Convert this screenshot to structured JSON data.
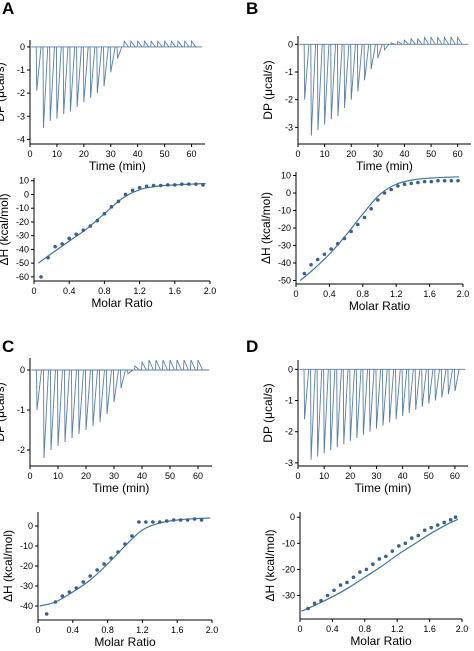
{
  "figure": {
    "panels": [
      "A",
      "B",
      "C",
      "D"
    ]
  },
  "chart_data": [
    {
      "panel": "A",
      "thermogram": {
        "type": "line",
        "xlabel": "Time (min)",
        "ylabel": "DP (μcal/s)",
        "xlim": [
          0,
          65
        ],
        "ylim": [
          -4.2,
          0.3
        ],
        "xticks": [
          0,
          10,
          20,
          30,
          40,
          50,
          60
        ],
        "yticks": [
          0,
          -1,
          -2,
          -3,
          -4
        ],
        "baseline": 0,
        "injection_times": [
          2.5,
          5,
          7.5,
          10,
          12.5,
          15,
          17.5,
          20,
          22.5,
          25,
          27.5,
          30,
          32.5,
          35,
          37.5,
          40,
          42.5,
          45,
          47.5,
          50,
          52.5,
          55,
          57.5,
          60
        ],
        "injection_peaks": [
          -1.9,
          -3.5,
          -3.2,
          -3.1,
          -2.9,
          -2.8,
          -2.6,
          -2.4,
          -2.2,
          -2.0,
          -1.7,
          -1.1,
          -0.5,
          0.25,
          0.25,
          0.25,
          0.25,
          0.25,
          0.25,
          0.25,
          0.25,
          0.25,
          0.25,
          0.25
        ]
      },
      "binding_isotherm": {
        "type": "scatter",
        "xlabel": "Molar Ratio",
        "ylabel": "ΔH (kcal/mol)",
        "xlim": [
          0,
          2.0
        ],
        "ylim": [
          -63,
          12
        ],
        "xticks": [
          0,
          0.4,
          0.8,
          1.2,
          1.6,
          2.0
        ],
        "xtick_labels": [
          "0",
          "0.4",
          "0.8",
          "1.2",
          "1.6",
          "2.0"
        ],
        "yticks": [
          10,
          0,
          -10,
          -20,
          -30,
          -40,
          -50,
          -60
        ],
        "points": {
          "x": [
            0.08,
            0.16,
            0.24,
            0.32,
            0.4,
            0.48,
            0.56,
            0.64,
            0.72,
            0.8,
            0.88,
            0.96,
            1.04,
            1.12,
            1.2,
            1.28,
            1.36,
            1.44,
            1.52,
            1.6,
            1.68,
            1.76,
            1.84,
            1.92
          ],
          "y": [
            -60,
            -46,
            -38,
            -36,
            -32,
            -29,
            -26,
            -23,
            -19,
            -14,
            -9,
            -5,
            0,
            3,
            5,
            6,
            6.5,
            6.5,
            7,
            7,
            7.5,
            7.5,
            7.5,
            7
          ]
        },
        "fit": {
          "x": [
            0.05,
            0.2,
            0.4,
            0.6,
            0.8,
            1.0,
            1.2,
            1.4,
            1.6,
            1.8,
            1.95
          ],
          "y": [
            -50,
            -43,
            -34,
            -25,
            -14,
            -3,
            3.5,
            6,
            7,
            7.6,
            8
          ]
        }
      }
    },
    {
      "panel": "B",
      "thermogram": {
        "type": "line",
        "xlabel": "Time (min)",
        "ylabel": "DP (μcal/s)",
        "xlim": [
          0,
          65
        ],
        "ylim": [
          -3.6,
          0.3
        ],
        "xticks": [
          0,
          10,
          20,
          30,
          40,
          50,
          60
        ],
        "yticks": [
          0,
          -1,
          -2,
          -3
        ],
        "baseline": 0,
        "injection_times": [
          2.5,
          5,
          7.5,
          10,
          12.5,
          15,
          17.5,
          20,
          22.5,
          25,
          27.5,
          30,
          32.5,
          35,
          37.5,
          40,
          42.5,
          45,
          47.5,
          50,
          52.5,
          55,
          57.5,
          60
        ],
        "injection_peaks": [
          -2.0,
          -3.3,
          -3.1,
          -2.9,
          -2.7,
          -2.6,
          -2.3,
          -2.0,
          -1.7,
          -1.3,
          -0.9,
          -0.5,
          -0.2,
          0.05,
          0.1,
          0.15,
          0.2,
          0.2,
          0.25,
          0.25,
          0.25,
          0.25,
          0.25,
          0.25
        ]
      },
      "binding_isotherm": {
        "type": "scatter",
        "xlabel": "Molar Ratio",
        "ylabel": "ΔH (kcal/mol)",
        "xlim": [
          0,
          2.0
        ],
        "ylim": [
          -52,
          12
        ],
        "xticks": [
          0,
          0.4,
          0.8,
          1.2,
          1.6,
          2.0
        ],
        "xtick_labels": [
          "0",
          "0.4",
          "0.8",
          "1.2",
          "1.6",
          "2.0"
        ],
        "yticks": [
          10,
          0,
          -10,
          -20,
          -30,
          -40,
          -50
        ],
        "points": {
          "x": [
            0.1,
            0.18,
            0.26,
            0.34,
            0.42,
            0.5,
            0.58,
            0.66,
            0.74,
            0.82,
            0.9,
            0.98,
            1.06,
            1.14,
            1.22,
            1.3,
            1.38,
            1.46,
            1.54,
            1.62,
            1.7,
            1.78,
            1.86,
            1.94
          ],
          "y": [
            -46,
            -41,
            -38,
            -35,
            -32,
            -29,
            -26,
            -22,
            -18,
            -14,
            -9,
            -4,
            0,
            2,
            4,
            5,
            5.5,
            6,
            6.5,
            6.5,
            7,
            7,
            7,
            7
          ]
        },
        "fit": {
          "x": [
            0.05,
            0.2,
            0.4,
            0.6,
            0.8,
            1.0,
            1.2,
            1.4,
            1.6,
            1.8,
            1.95
          ],
          "y": [
            -50,
            -44,
            -35,
            -24,
            -12,
            -1,
            5,
            7.5,
            8.5,
            9,
            9.2
          ]
        }
      }
    },
    {
      "panel": "C",
      "thermogram": {
        "type": "line",
        "xlabel": "Time (min)",
        "ylabel": "DP (μcal/s)",
        "xlim": [
          0,
          65
        ],
        "ylim": [
          -2.4,
          0.3
        ],
        "xticks": [
          0,
          10,
          20,
          30,
          40,
          50,
          60
        ],
        "yticks": [
          0,
          -1,
          -2
        ],
        "baseline": 0,
        "injection_times": [
          2.5,
          5,
          7.5,
          10,
          12.5,
          15,
          17.5,
          20,
          22.5,
          25,
          27.5,
          30,
          32.5,
          35,
          37.5,
          40,
          42.5,
          45,
          47.5,
          50,
          52.5,
          55,
          57.5,
          60
        ],
        "injection_peaks": [
          -1.0,
          -2.2,
          -2.0,
          -1.9,
          -1.8,
          -1.7,
          -1.6,
          -1.5,
          -1.4,
          -1.3,
          -1.1,
          -0.8,
          -0.45,
          -0.1,
          0.1,
          0.2,
          0.25,
          0.25,
          0.25,
          0.25,
          0.25,
          0.25,
          0.25,
          0.25
        ]
      },
      "binding_isotherm": {
        "type": "scatter",
        "xlabel": "Molar Ratio",
        "ylabel": "ΔH (kcal/mol)",
        "xlim": [
          0,
          2.0
        ],
        "ylim": [
          -47,
          7
        ],
        "xticks": [
          0,
          0.4,
          0.8,
          1.2,
          1.6,
          2.0
        ],
        "xtick_labels": [
          "0",
          "0.4",
          "0.8",
          "1.2",
          "1.6",
          "2.0"
        ],
        "yticks": [
          0,
          -10,
          -20,
          -30,
          -40
        ],
        "points": {
          "x": [
            0.1,
            0.2,
            0.28,
            0.36,
            0.44,
            0.52,
            0.6,
            0.68,
            0.76,
            0.84,
            0.92,
            1.0,
            1.08,
            1.16,
            1.24,
            1.32,
            1.4,
            1.48,
            1.56,
            1.64,
            1.72,
            1.8,
            1.88
          ],
          "y": [
            -44,
            -38,
            -35,
            -33,
            -31,
            -28,
            -25,
            -22,
            -19,
            -16,
            -13,
            -9,
            -5,
            2,
            2,
            2,
            2,
            2.5,
            3,
            3,
            3,
            3.5,
            3
          ]
        },
        "fit": {
          "x": [
            0.02,
            0.2,
            0.4,
            0.6,
            0.8,
            1.0,
            1.2,
            1.4,
            1.6,
            1.8,
            1.98
          ],
          "y": [
            -40,
            -38,
            -33,
            -27,
            -19,
            -10,
            -2,
            1.5,
            3,
            3.7,
            4
          ]
        }
      }
    },
    {
      "panel": "D",
      "thermogram": {
        "type": "line",
        "xlabel": "Time (min)",
        "ylabel": "DP (μcal/s)",
        "xlim": [
          0,
          65
        ],
        "ylim": [
          -3.1,
          0.3
        ],
        "xticks": [
          0,
          10,
          20,
          30,
          40,
          50,
          60
        ],
        "yticks": [
          0,
          -1,
          -2,
          -3
        ],
        "baseline": 0,
        "injection_times": [
          2.5,
          5,
          7.5,
          10,
          12.5,
          15,
          17.5,
          20,
          22.5,
          25,
          27.5,
          30,
          32.5,
          35,
          37.5,
          40,
          42.5,
          45,
          47.5,
          50,
          52.5,
          55,
          57.5,
          60
        ],
        "injection_peaks": [
          -1.6,
          -2.9,
          -2.8,
          -2.7,
          -2.6,
          -2.5,
          -2.4,
          -2.3,
          -2.2,
          -2.1,
          -2.0,
          -1.9,
          -1.8,
          -1.7,
          -1.6,
          -1.5,
          -1.4,
          -1.3,
          -1.2,
          -1.1,
          -1.0,
          -0.9,
          -0.8,
          -0.7
        ]
      },
      "binding_isotherm": {
        "type": "scatter",
        "xlabel": "Molar Ratio",
        "ylabel": "ΔH (kcal/mol)",
        "xlim": [
          0,
          2.0
        ],
        "ylim": [
          -39,
          2
        ],
        "xticks": [
          0,
          0.4,
          0.8,
          1.2,
          1.6,
          2.0
        ],
        "xtick_labels": [
          "0",
          "0.4",
          "0.8",
          "1.2",
          "1.6",
          "2.0"
        ],
        "yticks": [
          0,
          -10,
          -20,
          -30
        ],
        "points": {
          "x": [
            0.1,
            0.18,
            0.26,
            0.34,
            0.42,
            0.5,
            0.58,
            0.66,
            0.74,
            0.82,
            0.9,
            0.98,
            1.06,
            1.14,
            1.22,
            1.3,
            1.38,
            1.46,
            1.54,
            1.62,
            1.7,
            1.78,
            1.86,
            1.92
          ],
          "y": [
            -35,
            -33,
            -32,
            -30,
            -28,
            -26,
            -25,
            -23,
            -21,
            -20,
            -18,
            -16,
            -15,
            -13,
            -11,
            -10,
            -8,
            -7,
            -5,
            -4,
            -3,
            -2,
            -1,
            0
          ]
        },
        "fit": {
          "x": [
            0.02,
            0.2,
            0.4,
            0.6,
            0.8,
            1.0,
            1.2,
            1.4,
            1.6,
            1.8,
            1.95
          ],
          "y": [
            -36,
            -33.5,
            -30.5,
            -27,
            -23,
            -19,
            -14.5,
            -10.5,
            -6.5,
            -3,
            -0.8
          ]
        }
      }
    }
  ]
}
